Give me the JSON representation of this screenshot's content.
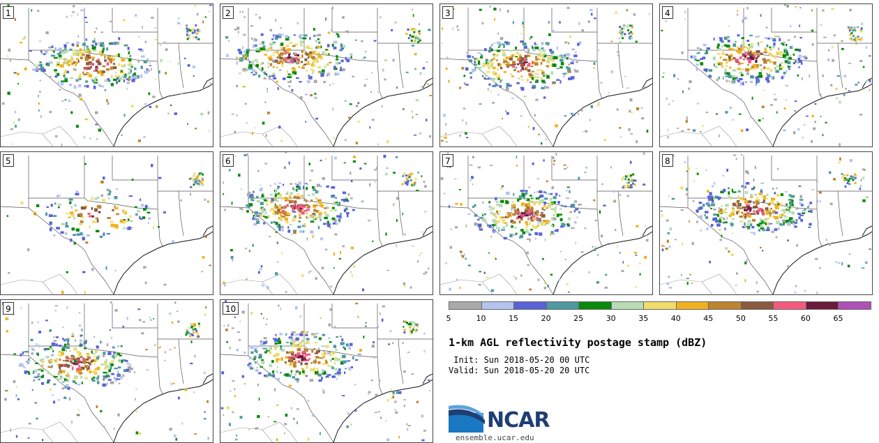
{
  "panels": [
    {
      "label": "1"
    },
    {
      "label": "2"
    },
    {
      "label": "3"
    },
    {
      "label": "4"
    },
    {
      "label": "5"
    },
    {
      "label": "6"
    },
    {
      "label": "7"
    },
    {
      "label": "8"
    },
    {
      "label": "9"
    },
    {
      "label": "10"
    }
  ],
  "colorbar": {
    "colors": [
      "#a9a9a9",
      "#b4c4ee",
      "#5a62d8",
      "#4e9aa0",
      "#0a8a0a",
      "#b9dcb6",
      "#efdd6a",
      "#efb21e",
      "#bd8530",
      "#8a5a40",
      "#f45a7e",
      "#6a1a3a",
      "#ae50b6"
    ],
    "ticks": [
      "5",
      "10",
      "15",
      "20",
      "25",
      "30",
      "35",
      "40",
      "45",
      "50",
      "55",
      "60",
      "65"
    ]
  },
  "title": "1-km AGL reflectivity postage stamp (dBZ)",
  "init": " Init: Sun 2018-05-20 00 UTC",
  "valid": "Valid: Sun 2018-05-20 20 UTC",
  "logo": {
    "text": "NCAR",
    "colors": {
      "primary": "#1f3e72",
      "accent": "#1a78c2"
    }
  },
  "site": "ensemble.ucar.edu"
}
